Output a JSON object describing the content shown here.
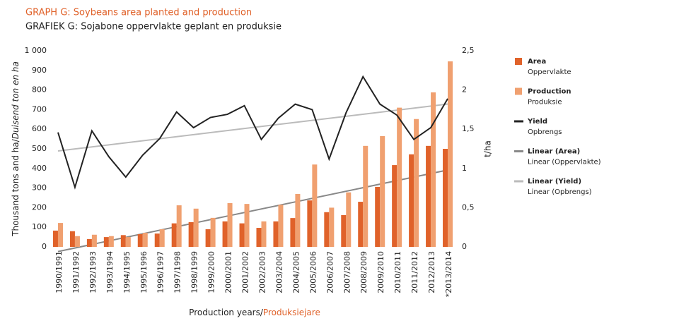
{
  "chart_data": {
    "type": "bar",
    "title": "GRAPH G: Soybeans area planted and production",
    "subtitle": "GRAFIEK G: Sojabone oppervlakte geplant en produksie",
    "x_label": "Production years/",
    "x_label_af": "Produksiejare",
    "y_label": "Thousand tons and ha/",
    "y_label_af": "Duisend ton en ha",
    "y2_label": "t/ha",
    "categories": [
      "1990/1991",
      "1991/1992",
      "1992/1993",
      "1993/1994",
      "1994/1995",
      "1995/1996",
      "1996/1997",
      "1997/1998",
      "1998/1999",
      "1999/2000",
      "2000/2001",
      "2001/2002",
      "2002/2003",
      "2003/2004",
      "2004/2005",
      "2005/2006",
      "2006/2007",
      "2007/2008",
      "2008/2009",
      "2009/2010",
      "2010/2011",
      "2011/2012",
      "2012/2013",
      "*2013/2014"
    ],
    "series": [
      {
        "name": "Area",
        "name_af": "Oppervlakte",
        "type": "bar",
        "color": "#e0622a",
        "values": [
          83,
          80,
          40,
          50,
          60,
          65,
          68,
          120,
          126,
          90,
          130,
          120,
          97,
          130,
          147,
          237,
          177,
          162,
          230,
          306,
          417,
          472,
          515,
          500
        ],
        "trendline": {
          "name": "Linear (Area)",
          "name_af": "Linear (Oppervlakte)",
          "color": "#888888"
        }
      },
      {
        "name": "Production",
        "name_af": "Produksie",
        "type": "bar",
        "color": "#f0a070",
        "values": [
          122,
          55,
          62,
          55,
          50,
          72,
          90,
          212,
          195,
          148,
          223,
          219,
          130,
          215,
          270,
          420,
          200,
          278,
          515,
          565,
          710,
          652,
          788,
          946
        ]
      },
      {
        "name": "Yield",
        "name_af": "Opbrengs",
        "type": "line",
        "axis": "y2",
        "color": "#222222",
        "values": [
          1.46,
          0.76,
          1.48,
          1.15,
          0.89,
          1.17,
          1.38,
          1.72,
          1.52,
          1.65,
          1.69,
          1.8,
          1.37,
          1.64,
          1.82,
          1.75,
          1.12,
          1.71,
          2.17,
          1.82,
          1.68,
          1.37,
          1.52,
          1.89
        ],
        "trendline": {
          "name": "Linear (Yield)",
          "name_af": "Linear (Opbrengs)",
          "color": "#bbbbbb"
        }
      }
    ],
    "ylim": [
      0,
      1000
    ],
    "yticks": [
      0,
      100,
      200,
      300,
      400,
      500,
      600,
      700,
      800,
      900,
      {
        "value": 1000,
        "label": "1 000"
      }
    ],
    "y2lim": [
      0,
      2.5
    ],
    "y2ticks": [
      0,
      {
        "value": 0.5,
        "label": "0,5"
      },
      1,
      {
        "value": 1.5,
        "label": "1,5"
      },
      2,
      {
        "value": 2.5,
        "label": "2,5"
      }
    ]
  }
}
